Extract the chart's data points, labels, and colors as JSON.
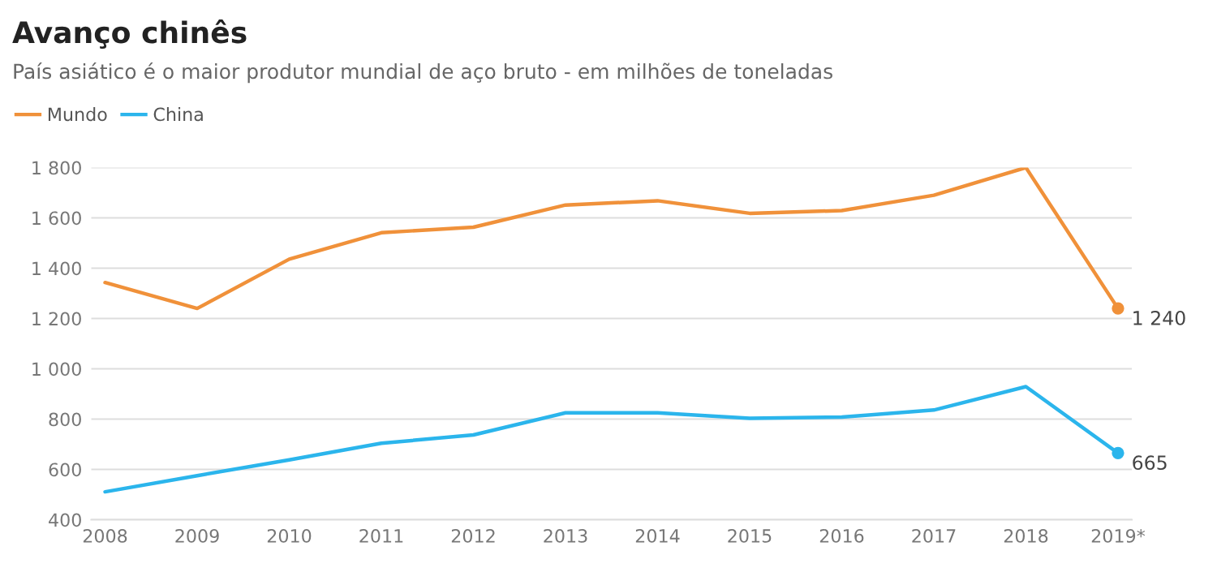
{
  "chart_data": {
    "type": "line",
    "title": "Avanço chinês",
    "subtitle": "País asiático é o maior produtor mundial de aço bruto - em milhões de toneladas",
    "categories": [
      "2008",
      "2009",
      "2010",
      "2011",
      "2012",
      "2013",
      "2014",
      "2015",
      "2016",
      "2017",
      "2018",
      "2019*"
    ],
    "series": [
      {
        "name": "Mundo",
        "color": "#f0913a",
        "values": [
          1343,
          1240,
          1436,
          1541,
          1563,
          1651,
          1668,
          1618,
          1629,
          1690,
          1800,
          1240
        ],
        "value_labels": [
          null,
          null,
          null,
          null,
          null,
          null,
          null,
          null,
          null,
          null,
          null,
          "1 240"
        ]
      },
      {
        "name": "China",
        "color": "#2bb5ec",
        "values": [
          511,
          575,
          638,
          704,
          737,
          825,
          825,
          803,
          808,
          836,
          929,
          665
        ],
        "value_labels": [
          null,
          null,
          null,
          null,
          null,
          null,
          null,
          null,
          null,
          null,
          null,
          "665"
        ]
      }
    ],
    "ylim": [
      400,
      1800
    ],
    "yticks": [
      {
        "value": 400,
        "label": "400"
      },
      {
        "value": 600,
        "label": "600"
      },
      {
        "value": 800,
        "label": "800"
      },
      {
        "value": 1000,
        "label": "1 000"
      },
      {
        "value": 1200,
        "label": "1 200"
      },
      {
        "value": 1400,
        "label": "1 400"
      },
      {
        "value": 1600,
        "label": "1 600"
      },
      {
        "value": 1800,
        "label": "1 800"
      }
    ],
    "grid": "y",
    "legend": "top left"
  }
}
